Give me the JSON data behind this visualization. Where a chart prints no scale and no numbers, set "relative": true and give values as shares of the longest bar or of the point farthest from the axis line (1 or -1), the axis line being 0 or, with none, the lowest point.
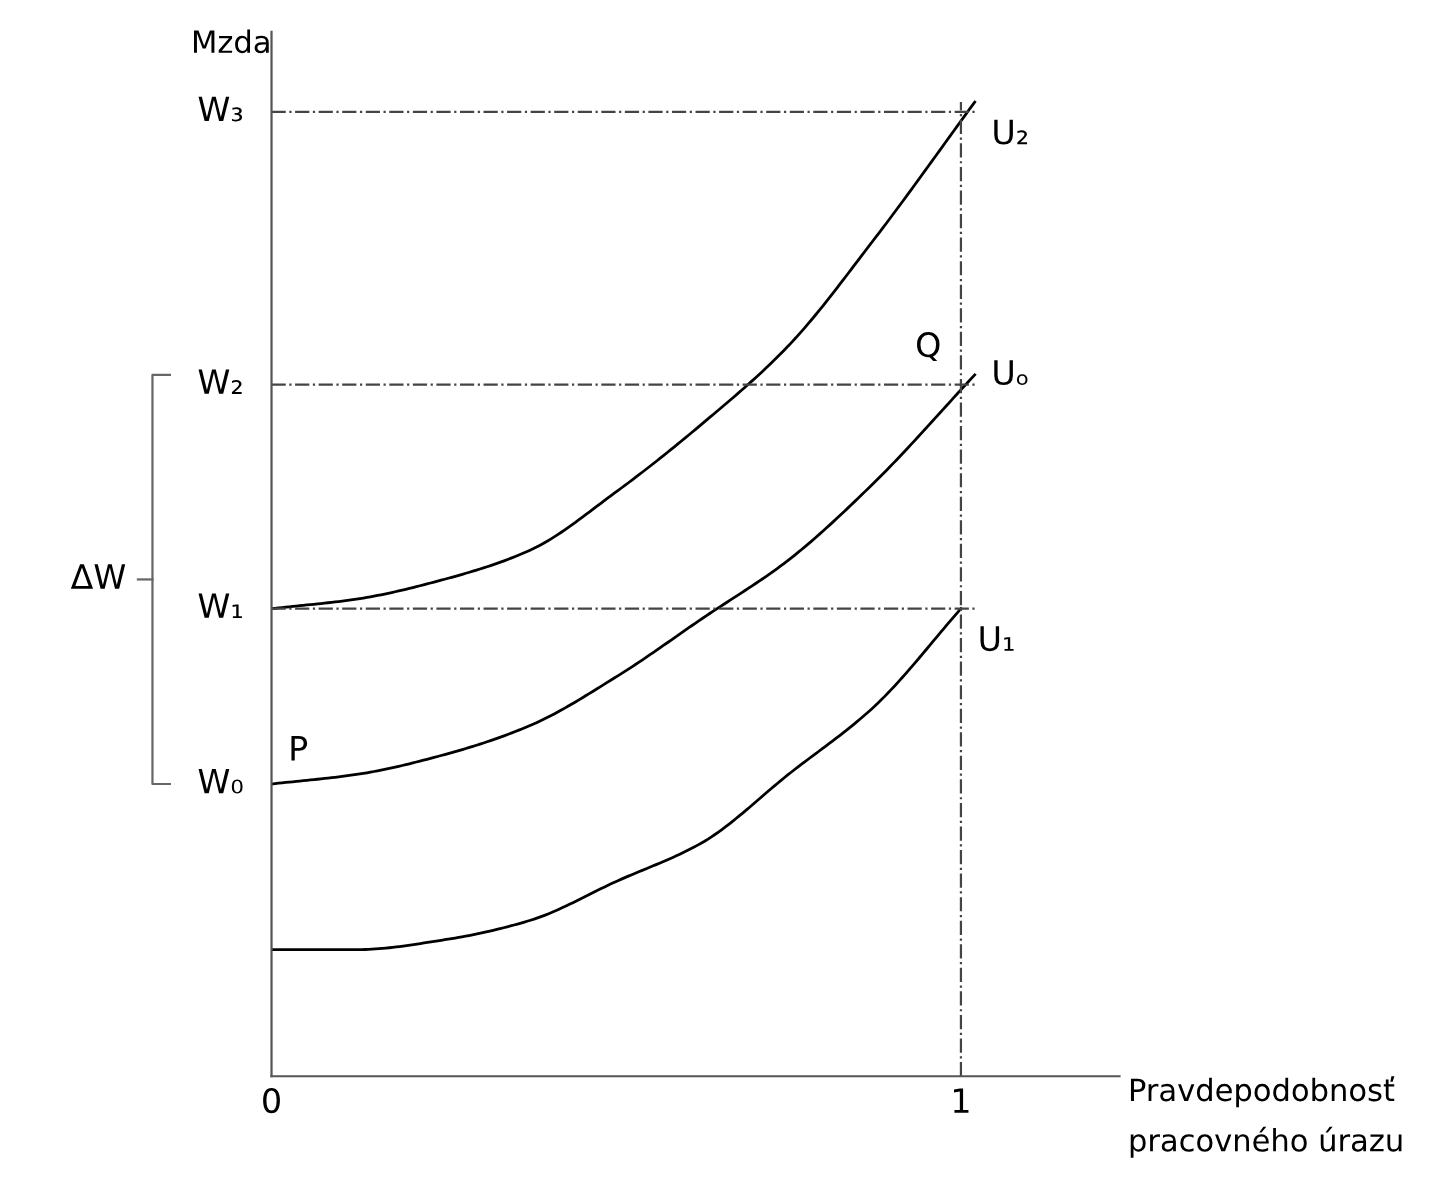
{
  "chart_data": {
    "type": "line",
    "relative": true,
    "ylabel": "Mzda",
    "xlabel": "Pravdepodobnosť\npracovného úrazu",
    "xlim": [
      0,
      1.23
    ],
    "xticks": [
      0,
      1
    ],
    "grid": false,
    "legend": false,
    "marker": "none",
    "line_style": "solid",
    "series": [
      {
        "name": "U₂",
        "color": "#000000",
        "x": [
          0,
          0.125,
          0.25,
          0.375,
          0.5,
          0.625,
          0.75,
          0.875,
          1.02
        ],
        "values": [
          0.48,
          0.49,
          0.51,
          0.54,
          0.6,
          0.67,
          0.75,
          0.86,
          1.0
        ]
      },
      {
        "name": "Uₒ",
        "color": "#000000",
        "x": [
          0,
          0.125,
          0.25,
          0.375,
          0.5,
          0.625,
          0.75,
          0.875,
          1.02
        ],
        "values": [
          0.3,
          0.31,
          0.33,
          0.36,
          0.41,
          0.47,
          0.53,
          0.61,
          0.72
        ]
      },
      {
        "name": "U₁",
        "color": "#000000",
        "x": [
          0,
          0.125,
          0.25,
          0.375,
          0.5,
          0.625,
          0.75,
          0.875,
          1.0
        ],
        "values": [
          0.13,
          0.13,
          0.14,
          0.16,
          0.2,
          0.24,
          0.31,
          0.38,
          0.48
        ]
      }
    ],
    "ref_lines": [
      {
        "axis": "y",
        "value": 0.99,
        "label": "W₃",
        "line_style": "dashdot"
      },
      {
        "axis": "y",
        "value": 0.71,
        "label": "W₂",
        "line_style": "dashdot"
      },
      {
        "axis": "y",
        "value": 0.48,
        "label": "W₁",
        "line_style": "dashdot"
      },
      {
        "axis": "x",
        "value": 1,
        "line_style": "dashdot"
      }
    ],
    "annotations": [
      "W₀",
      {
        "text": "P",
        "x": 0,
        "y": 0.3
      },
      {
        "text": "Q",
        "x": 1.02,
        "y": 0.72
      },
      "ΔW"
    ]
  }
}
